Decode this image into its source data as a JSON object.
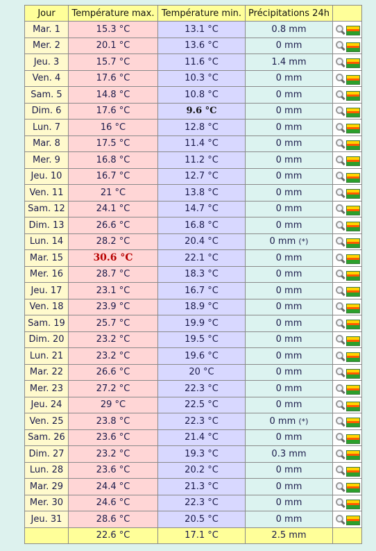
{
  "headers": {
    "day": "Jour",
    "max": "Température max.",
    "min": "Température min.",
    "precip": "Précipitations 24h"
  },
  "rows": [
    {
      "day": "Mar. 1",
      "max": "15.3 °C",
      "min": "13.1 °C",
      "precip": "0.8 mm",
      "note": ""
    },
    {
      "day": "Mer. 2",
      "max": "20.1 °C",
      "min": "13.6 °C",
      "precip": "0 mm",
      "note": ""
    },
    {
      "day": "Jeu. 3",
      "max": "15.7 °C",
      "min": "11.6 °C",
      "precip": "1.4 mm",
      "note": ""
    },
    {
      "day": "Ven. 4",
      "max": "17.6 °C",
      "min": "10.3 °C",
      "precip": "0 mm",
      "note": ""
    },
    {
      "day": "Sam. 5",
      "max": "14.8 °C",
      "min": "10.8 °C",
      "precip": "0 mm",
      "note": ""
    },
    {
      "day": "Dim. 6",
      "max": "17.6 °C",
      "min": "9.6 °C",
      "precip": "0 mm",
      "note": "",
      "min_record": true
    },
    {
      "day": "Lun. 7",
      "max": "16 °C",
      "min": "12.8 °C",
      "precip": "0 mm",
      "note": ""
    },
    {
      "day": "Mar. 8",
      "max": "17.5 °C",
      "min": "11.4 °C",
      "precip": "0 mm",
      "note": ""
    },
    {
      "day": "Mer. 9",
      "max": "16.8 °C",
      "min": "11.2 °C",
      "precip": "0 mm",
      "note": ""
    },
    {
      "day": "Jeu. 10",
      "max": "16.7 °C",
      "min": "12.7 °C",
      "precip": "0 mm",
      "note": ""
    },
    {
      "day": "Ven. 11",
      "max": "21 °C",
      "min": "13.8 °C",
      "precip": "0 mm",
      "note": ""
    },
    {
      "day": "Sam. 12",
      "max": "24.1 °C",
      "min": "14.7 °C",
      "precip": "0 mm",
      "note": ""
    },
    {
      "day": "Dim. 13",
      "max": "26.6 °C",
      "min": "16.8 °C",
      "precip": "0 mm",
      "note": ""
    },
    {
      "day": "Lun. 14",
      "max": "28.2 °C",
      "min": "20.4 °C",
      "precip": "0 mm",
      "note": "(*)"
    },
    {
      "day": "Mar. 15",
      "max": "30.6 °C",
      "min": "22.1 °C",
      "precip": "0 mm",
      "note": "",
      "max_record": true
    },
    {
      "day": "Mer. 16",
      "max": "28.7 °C",
      "min": "18.3 °C",
      "precip": "0 mm",
      "note": ""
    },
    {
      "day": "Jeu. 17",
      "max": "23.1 °C",
      "min": "16.7 °C",
      "precip": "0 mm",
      "note": ""
    },
    {
      "day": "Ven. 18",
      "max": "23.9 °C",
      "min": "18.9 °C",
      "precip": "0 mm",
      "note": ""
    },
    {
      "day": "Sam. 19",
      "max": "25.7 °C",
      "min": "19.9 °C",
      "precip": "0 mm",
      "note": ""
    },
    {
      "day": "Dim. 20",
      "max": "23.2 °C",
      "min": "19.5 °C",
      "precip": "0 mm",
      "note": ""
    },
    {
      "day": "Lun. 21",
      "max": "23.2 °C",
      "min": "19.6 °C",
      "precip": "0 mm",
      "note": ""
    },
    {
      "day": "Mar. 22",
      "max": "26.6 °C",
      "min": "20 °C",
      "precip": "0 mm",
      "note": ""
    },
    {
      "day": "Mer. 23",
      "max": "27.2 °C",
      "min": "22.3 °C",
      "precip": "0 mm",
      "note": ""
    },
    {
      "day": "Jeu. 24",
      "max": "29 °C",
      "min": "22.5 °C",
      "precip": "0 mm",
      "note": ""
    },
    {
      "day": "Ven. 25",
      "max": "23.8 °C",
      "min": "22.3 °C",
      "precip": "0 mm",
      "note": "(*)"
    },
    {
      "day": "Sam. 26",
      "max": "23.6 °C",
      "min": "21.4 °C",
      "precip": "0 mm",
      "note": ""
    },
    {
      "day": "Dim. 27",
      "max": "23.2 °C",
      "min": "19.3 °C",
      "precip": "0.3 mm",
      "note": ""
    },
    {
      "day": "Lun. 28",
      "max": "23.6 °C",
      "min": "20.2 °C",
      "precip": "0 mm",
      "note": ""
    },
    {
      "day": "Mar. 29",
      "max": "24.4 °C",
      "min": "21.3 °C",
      "precip": "0 mm",
      "note": ""
    },
    {
      "day": "Mer. 30",
      "max": "24.6 °C",
      "min": "22.3 °C",
      "precip": "0 mm",
      "note": ""
    },
    {
      "day": "Jeu. 31",
      "max": "28.6 °C",
      "min": "20.5 °C",
      "precip": "0 mm",
      "note": ""
    }
  ],
  "footer": {
    "day": "",
    "max": "22.6 °C",
    "min": "17.1 °C",
    "precip": "2.5 mm"
  },
  "icons": [
    "magnifier-icon",
    "graph-icon"
  ],
  "colors": {
    "header": "#ffff99",
    "day": "#fffacd",
    "max": "#ffd6d6",
    "min": "#d8d8ff",
    "precip": "#dcf3f0",
    "background": "#ddf2ee",
    "record_max": "#b80000"
  }
}
